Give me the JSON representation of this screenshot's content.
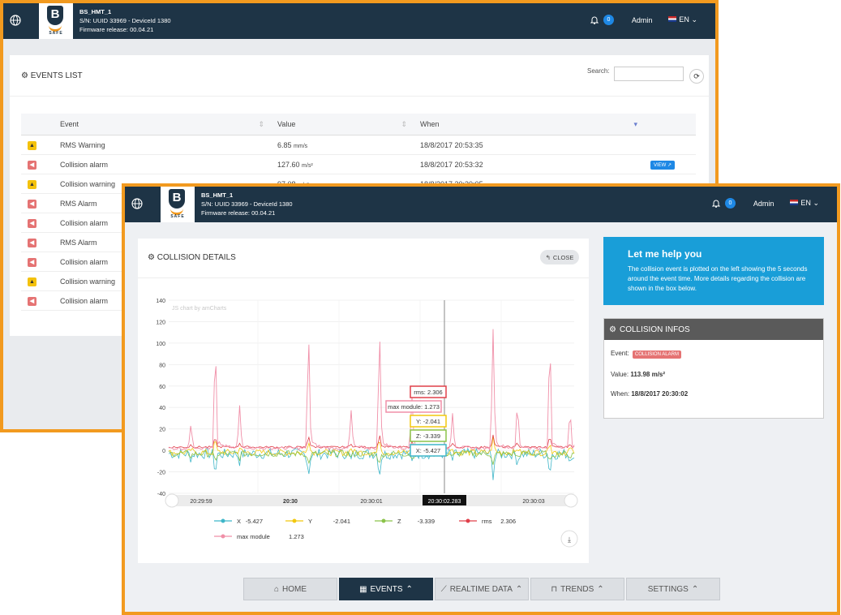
{
  "back_window": {
    "device": {
      "name": "BS_HMT_1",
      "serial": "S/N: UUID 33969 - DeviceId 1380",
      "firmware": "Firmware release: 00.04.21"
    },
    "brand": "SAFE",
    "notifications_count": "0",
    "user": "Admin",
    "language": "EN",
    "events_title": "EVENTS LIST",
    "search_label": "Search:",
    "search_value": "",
    "columns": [
      "Event",
      "Value",
      "When"
    ],
    "rows": [
      {
        "type": "warning",
        "event": "RMS Warning",
        "value": "6.85",
        "unit": "mm/s",
        "when": "18/8/2017 20:53:35",
        "action": ""
      },
      {
        "type": "alarm",
        "event": "Collision alarm",
        "value": "127.60",
        "unit": "m/s²",
        "when": "18/8/2017 20:53:32",
        "action": "VIEW"
      },
      {
        "type": "warning",
        "event": "Collision warning",
        "value": "97.08",
        "unit": "m/s²",
        "when": "18/8/2017 20:30:05",
        "action": ""
      },
      {
        "type": "alarm",
        "event": "RMS Alarm",
        "value": "",
        "unit": "",
        "when": "",
        "action": ""
      },
      {
        "type": "alarm",
        "event": "Collision alarm",
        "value": "",
        "unit": "",
        "when": "",
        "action": ""
      },
      {
        "type": "alarm",
        "event": "RMS Alarm",
        "value": "",
        "unit": "",
        "when": "",
        "action": ""
      },
      {
        "type": "alarm",
        "event": "Collision alarm",
        "value": "",
        "unit": "",
        "when": "",
        "action": ""
      },
      {
        "type": "warning",
        "event": "Collision warning",
        "value": "",
        "unit": "",
        "when": "",
        "action": ""
      },
      {
        "type": "alarm",
        "event": "Collision alarm",
        "value": "",
        "unit": "",
        "when": "",
        "action": ""
      }
    ]
  },
  "front_window": {
    "device": {
      "name": "BS_HMT_1",
      "serial": "S/N: UUID 33969 - DeviceId 1380",
      "firmware": "Firmware release: 00.04.21"
    },
    "brand": "SAFE",
    "notifications_count": "0",
    "user": "Admin",
    "language": "EN",
    "details_title": "COLLISION DETAILS",
    "close_label": "CLOSE",
    "amcharts_credit": "JS chart by amCharts",
    "help": {
      "title": "Let me help you",
      "text": "The collision event is plotted on the left showing the 5 seconds around the event time. More details regarding the collision are shown in the box below."
    },
    "collision_info": {
      "title": "COLLISION INFOS",
      "event_label": "Event:",
      "event_value": "COLLISION ALARM",
      "value_label": "Value:",
      "value_value": "113.98 m/s²",
      "when_label": "When:",
      "when_value": "18/8/2017 20:30:02"
    },
    "nav": [
      "HOME",
      "EVENTS",
      "REALTIME DATA",
      "TRENDS",
      "SETTINGS"
    ],
    "active_nav": "EVENTS"
  },
  "chart_data": {
    "type": "line",
    "ylim": [
      -40,
      140
    ],
    "yticks": [
      140,
      120,
      100,
      80,
      60,
      40,
      20,
      0,
      -20,
      -40
    ],
    "xticks": [
      "20:29:59",
      "20:30",
      "20:30:01",
      "20:30:02.283",
      "20:30:03"
    ],
    "cursor_time": "20:30:02.283",
    "series": [
      {
        "name": "X",
        "color": "#3fb6c9",
        "cursor_value": -5.427
      },
      {
        "name": "Y",
        "color": "#f2c80f",
        "cursor_value": -2.041
      },
      {
        "name": "Z",
        "color": "#8bc34a",
        "cursor_value": -3.339
      },
      {
        "name": "rms",
        "color": "#e0404a",
        "cursor_value": 2.306
      },
      {
        "name": "max module",
        "color": "#f08fa8",
        "cursor_value": 1.273
      }
    ],
    "tooltips": [
      "rms: 2.306",
      "max module: 1.273",
      "Y: -2.041",
      "Z: -3.339",
      "X: -5.427"
    ],
    "legend": [
      {
        "name": "X",
        "value": "-5.427"
      },
      {
        "name": "Y",
        "value": "-2.041"
      },
      {
        "name": "Z",
        "value": "-3.339"
      },
      {
        "name": "rms",
        "value": "2.306"
      },
      {
        "name": "max module",
        "value": "1.273"
      }
    ],
    "peaks": [
      {
        "t": 0.055,
        "v": 25
      },
      {
        "t": 0.115,
        "v": 105
      },
      {
        "t": 0.175,
        "v": 40
      },
      {
        "t": 0.345,
        "v": 113
      },
      {
        "t": 0.45,
        "v": 35
      },
      {
        "t": 0.52,
        "v": 115
      },
      {
        "t": 0.6,
        "v": 50
      },
      {
        "t": 0.7,
        "v": 34
      },
      {
        "t": 0.8,
        "v": 112
      },
      {
        "t": 0.86,
        "v": 45
      },
      {
        "t": 0.94,
        "v": 110
      },
      {
        "t": 0.99,
        "v": 38
      }
    ]
  }
}
